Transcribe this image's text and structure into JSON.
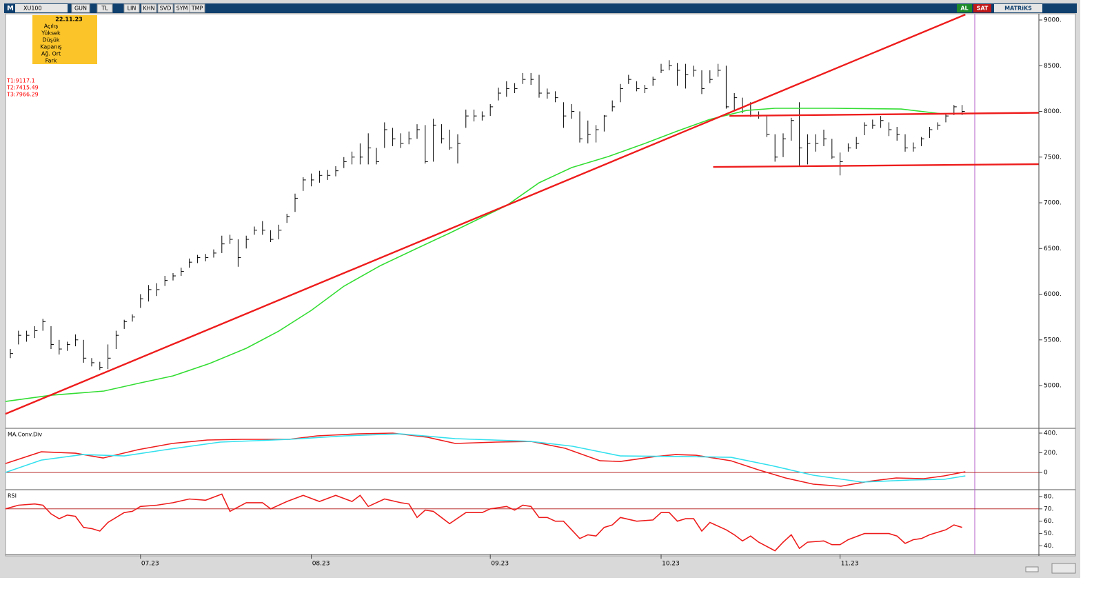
{
  "toolbar": {
    "logo": "M",
    "symbol": "XU100",
    "buttons": [
      "GUN",
      "TL",
      "LIN",
      "KHN",
      "SVD",
      "SYM",
      "TMP"
    ],
    "buy": "AL",
    "sell": "SAT",
    "brand": "MATRiKS"
  },
  "info_box": {
    "date": "22.11.23",
    "labels": [
      "Açılış",
      "Yüksek",
      "Düşük",
      "Kapanış",
      "Ağ. Ort",
      "Fark"
    ]
  },
  "chart_data": [
    {
      "type": "ohlc",
      "color": "#000000",
      "categories": [
        null,
        null,
        null,
        null,
        null,
        null,
        null,
        null,
        null,
        null,
        null,
        null,
        null,
        null,
        null,
        null,
        "07.23",
        null,
        null,
        null,
        null,
        null,
        null,
        null,
        null,
        null,
        null,
        null,
        null,
        null,
        null,
        null,
        null,
        null,
        null,
        null,
        null,
        "08.23",
        null,
        null,
        null,
        null,
        null,
        null,
        null,
        null,
        null,
        null,
        null,
        null,
        null,
        null,
        null,
        null,
        null,
        null,
        null,
        null,
        null,
        "09.23",
        null,
        null,
        null,
        null,
        null,
        null,
        null,
        null,
        null,
        null,
        null,
        null,
        null,
        null,
        null,
        null,
        null,
        null,
        null,
        null,
        "10.23",
        null,
        null,
        null,
        null,
        null,
        null,
        null,
        null,
        null,
        null,
        null,
        null,
        null,
        null,
        null,
        null,
        null,
        null,
        null,
        null,
        null,
        "11.23",
        null,
        null,
        null,
        null,
        null,
        null,
        null,
        null,
        null,
        null,
        null,
        null,
        null,
        null,
        null
      ],
      "high": [
        5400,
        5600,
        5600,
        5650,
        5730,
        5650,
        5500,
        5480,
        5560,
        5500,
        5300,
        5260,
        5450,
        5600,
        5720,
        5780,
        6000,
        6100,
        6120,
        6200,
        6230,
        6290,
        6390,
        6430,
        6440,
        6490,
        6640,
        6650,
        6600,
        6640,
        6740,
        6800,
        6700,
        6760,
        6880,
        7100,
        7280,
        7320,
        7350,
        7360,
        7400,
        7500,
        7560,
        7650,
        7760,
        7600,
        7880,
        7820,
        7760,
        7780,
        7860,
        7850,
        7920,
        7860,
        7800,
        7750,
        8020,
        8020,
        8000,
        8080,
        8260,
        8330,
        8310,
        8420,
        8420,
        8400,
        8250,
        8220,
        8100,
        8080,
        8000,
        7900,
        7850,
        7960,
        8120,
        8300,
        8400,
        8330,
        8290,
        8380,
        8520,
        8560,
        8530,
        8520,
        8500,
        8450,
        8450,
        8520,
        8500,
        8200,
        8150,
        8100,
        8000,
        7950,
        7750,
        7760,
        7930,
        8100,
        7750,
        7750,
        7800,
        7700,
        7550,
        7650,
        7720,
        7880,
        7910,
        7950,
        7880,
        7830,
        7750,
        7660,
        7720,
        7830,
        7880,
        7980,
        8070,
        8070
      ],
      "low": [
        5300,
        5450,
        5480,
        5520,
        5600,
        5400,
        5340,
        5380,
        5430,
        5250,
        5210,
        5170,
        5180,
        5400,
        5620,
        5700,
        5850,
        5920,
        5980,
        6090,
        6150,
        6200,
        6290,
        6340,
        6360,
        6400,
        6450,
        6550,
        6300,
        6500,
        6650,
        6650,
        6570,
        6600,
        6780,
        6900,
        7130,
        7180,
        7220,
        7250,
        7290,
        7380,
        7420,
        7420,
        7420,
        7420,
        7600,
        7620,
        7600,
        7640,
        7700,
        7430,
        7450,
        7650,
        7580,
        7430,
        7820,
        7890,
        7900,
        7950,
        8120,
        8160,
        8200,
        8300,
        8290,
        8150,
        8140,
        8100,
        7820,
        7920,
        7660,
        7650,
        7660,
        7780,
        8000,
        8100,
        8300,
        8220,
        8200,
        8280,
        8420,
        8450,
        8280,
        8250,
        8380,
        8190,
        8310,
        8380,
        8030,
        8000,
        7980,
        7940,
        7920,
        7720,
        7450,
        7500,
        7680,
        7400,
        7420,
        7560,
        7620,
        7480,
        7300,
        7560,
        7590,
        7740,
        7810,
        7820,
        7730,
        7680,
        7560,
        7560,
        7620,
        7710,
        7800,
        7880,
        7960,
        7960
      ],
      "close": [
        5350,
        5550,
        5550,
        5600,
        5700,
        5450,
        5400,
        5450,
        5500,
        5300,
        5250,
        5200,
        5300,
        5550,
        5700,
        5750,
        5950,
        6050,
        6050,
        6150,
        6200,
        6250,
        6350,
        6400,
        6400,
        6450,
        6550,
        6600,
        6400,
        6600,
        6700,
        6700,
        6600,
        6700,
        6850,
        7050,
        7250,
        7250,
        7300,
        7300,
        7350,
        7450,
        7500,
        7500,
        7600,
        7450,
        7800,
        7700,
        7650,
        7700,
        7800,
        7450,
        7850,
        7700,
        7600,
        7650,
        7950,
        7950,
        7950,
        8050,
        8200,
        8250,
        8250,
        8350,
        8350,
        8200,
        8200,
        8150,
        7950,
        8000,
        7700,
        7750,
        7800,
        7950,
        8050,
        8250,
        8350,
        8250,
        8250,
        8350,
        8450,
        8500,
        8450,
        8400,
        8450,
        8250,
        8350,
        8450,
        8050,
        8150,
        8050,
        7950,
        7950,
        7750,
        7500,
        7700,
        7900,
        7600,
        7650,
        7650,
        7700,
        7500,
        7450,
        7600,
        7650,
        7850,
        7850,
        7900,
        7800,
        7750,
        7600,
        7600,
        7700,
        7800,
        7850,
        7950,
        8050,
        8000
      ],
      "ma": {
        "color": "#33dd33",
        "x": [
          -0.6,
          5,
          11.5,
          16,
          20,
          24.5,
          29,
          33,
          37,
          41,
          45.5,
          50,
          54,
          58,
          61,
          65,
          69,
          73.5,
          78,
          82,
          86,
          90.5,
          94,
          101,
          109.5,
          114.5,
          117.5
        ],
        "values": [
          4826,
          4894,
          4940,
          5030,
          5106,
          5242,
          5408,
          5596,
          5823,
          6087,
          6313,
          6502,
          6668,
          6842,
          6970,
          7219,
          7385,
          7506,
          7649,
          7785,
          7913,
          8011,
          8034,
          8034,
          8026,
          7974,
          7974
        ]
      },
      "trendlines": [
        {
          "color": "#ee1c1c",
          "x": [
            -0.6,
            117.4
          ],
          "values": [
            4690,
            9060
          ]
        },
        {
          "color": "#ee1c1c",
          "x": [
            88.4,
            126.4
          ],
          "values": [
            7950,
            7985
          ]
        },
        {
          "color": "#ee1c1c",
          "x": [
            86.4,
            126.4
          ],
          "values": [
            7392,
            7423
          ]
        }
      ],
      "annotations": [
        "T1:9117.1",
        "T2:7415.49",
        "T3:7966.29"
      ],
      "annotation_color": "#ff0000",
      "ylim": [
        4540,
        9068
      ],
      "yticks": [
        {
          "value": 5000,
          "label": "5000."
        },
        {
          "value": 5500,
          "label": "5500."
        },
        {
          "value": 6000,
          "label": "6000."
        },
        {
          "value": 6500,
          "label": "6500."
        },
        {
          "value": 7000,
          "label": "7000."
        },
        {
          "value": 7500,
          "label": "7500."
        },
        {
          "value": 8000,
          "label": "8000."
        },
        {
          "value": 8500,
          "label": "8500."
        },
        {
          "value": 9000,
          "label": "9000."
        }
      ]
    },
    {
      "type": "line",
      "title": "MA.Conv.Div",
      "series": [
        {
          "color": "#ee1c1c",
          "x": [
            -0.6,
            3.8,
            8.0,
            11.4,
            15.7,
            19.9,
            24.2,
            28.4,
            34.3,
            37.7,
            42.8,
            47.0,
            51.3,
            54.7,
            59.7,
            64.0,
            68.2,
            72.5,
            75.0,
            79.2,
            81.8,
            84.3,
            88.6,
            91.9,
            95.3,
            98.7,
            102.1,
            105.5,
            108.9,
            112.3,
            114.8,
            117.4
          ],
          "values": [
            91,
            210,
            196,
            147,
            232,
            295,
            330,
            337,
            337,
            372,
            393,
            400,
            358,
            295,
            309,
            316,
            246,
            119,
            112,
            161,
            182,
            175,
            119,
            28,
            -56,
            -119,
            -140,
            -91,
            -56,
            -63,
            -35,
            7
          ]
        },
        {
          "color": "#33e0ee",
          "x": [
            -0.6,
            3.8,
            8.9,
            14.0,
            19.1,
            25.8,
            34.3,
            41.1,
            47.9,
            54.7,
            64.0,
            69.1,
            75.0,
            83.5,
            88.6,
            93.6,
            98.7,
            104.7,
            110.6,
            114.8,
            117.4
          ],
          "values": [
            0,
            126,
            182,
            168,
            232,
            309,
            337,
            372,
            393,
            344,
            316,
            267,
            168,
            161,
            154,
            70,
            -28,
            -98,
            -77,
            -70,
            -35
          ]
        }
      ],
      "reference_line": 0,
      "reference_color": "#b01010",
      "ylim": [
        -175,
        442
      ],
      "yticks": [
        0,
        {
          "value": 200,
          "label": "200."
        },
        {
          "value": 400,
          "label": "400."
        }
      ]
    },
    {
      "type": "line",
      "title": "RSI",
      "series": [
        {
          "color": "#ee1c1c",
          "x": [
            -0.6,
            1,
            3,
            4,
            5,
            6,
            7,
            8,
            9,
            10,
            11,
            12,
            13,
            14,
            15,
            16,
            18,
            20,
            22,
            24,
            26,
            27,
            29,
            31,
            32,
            34,
            36,
            38,
            40,
            42,
            43,
            44,
            46,
            48,
            49,
            50,
            51,
            52,
            53,
            54,
            56,
            58,
            59,
            61,
            62,
            63,
            64,
            65,
            66,
            67,
            68,
            69,
            70,
            71,
            72,
            73,
            74,
            75,
            77,
            79,
            80,
            81,
            82,
            83,
            84,
            85,
            86,
            88,
            89,
            90,
            91,
            92,
            94,
            95,
            96,
            97,
            98,
            100,
            101,
            102,
            103,
            105,
            108,
            109,
            110,
            111,
            112,
            113,
            115,
            116,
            117
          ],
          "values": [
            70,
            73,
            74,
            73,
            66,
            62,
            65,
            64,
            55,
            54,
            52,
            59,
            63,
            67,
            68,
            72,
            73,
            75,
            78,
            77,
            82,
            68,
            75,
            75,
            70,
            76,
            81,
            76,
            81,
            76,
            81,
            72,
            78,
            75,
            74,
            63,
            69,
            68,
            63,
            58,
            67,
            67,
            70,
            72,
            69,
            73,
            72,
            63,
            63,
            60,
            60,
            53,
            46,
            49,
            48,
            55,
            57,
            63,
            60,
            61,
            67,
            67,
            60,
            62,
            62,
            52,
            59,
            53,
            49,
            44,
            48,
            43,
            36,
            43,
            49,
            38,
            43,
            44,
            41,
            41,
            45,
            50,
            50,
            48,
            42,
            45,
            46,
            49,
            53,
            57,
            55
          ]
        }
      ],
      "reference_line": 70,
      "reference_color": "#b01010",
      "ylim": [
        33,
        85
      ],
      "yticks": [
        {
          "value": 40,
          "label": "40."
        },
        {
          "value": 50,
          "label": "50."
        },
        {
          "value": 60,
          "label": "60."
        },
        {
          "value": 70,
          "label": "70."
        },
        {
          "value": 80,
          "label": "80."
        }
      ]
    }
  ]
}
